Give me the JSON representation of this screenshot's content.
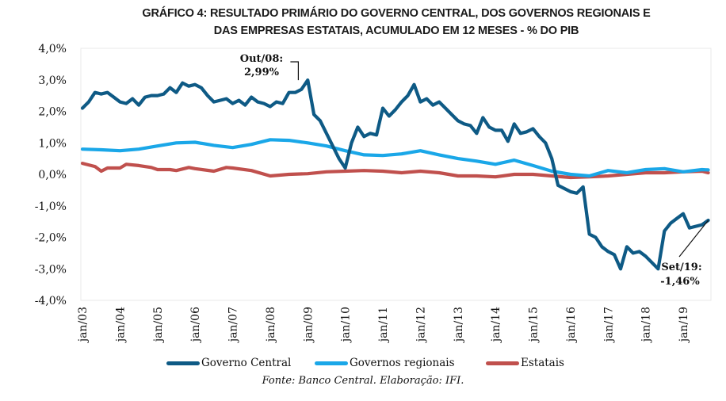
{
  "title_line1": "GRÁFICO 4: RESULTADO PRIMÁRIO DO GOVERNO CENTRAL, DOS GOVERNOS REGIONAIS E",
  "title_line2": "DAS EMPRESAS ESTATAIS, ACUMULADO EM 12 MESES - % DO PIB",
  "source": "Fonte: Banco Central. Elaboração: IFI.",
  "chart_data": {
    "type": "line",
    "title": "GRÁFICO 4: RESULTADO PRIMÁRIO DO GOVERNO CENTRAL, DOS GOVERNOS REGIONAIS E DAS EMPRESAS ESTATAIS, ACUMULADO EM 12 MESES - % DO PIB",
    "xlabel": "",
    "ylabel": "",
    "ylim": [
      -4.0,
      4.0
    ],
    "yticks": [
      4.0,
      3.0,
      2.0,
      1.0,
      0.0,
      -1.0,
      -2.0,
      -3.0,
      -4.0
    ],
    "ytick_labels": [
      "4,0%",
      "3,0%",
      "2,0%",
      "1,0%",
      "0,0%",
      "-1,0%",
      "-2,0%",
      "-3,0%",
      "-4,0%"
    ],
    "xlim_months": [
      0,
      200
    ],
    "xtick_labels": [
      "jan/03",
      "jan/04",
      "jan/05",
      "jan/06",
      "jan/07",
      "jan/08",
      "jan/09",
      "jan/10",
      "jan/11",
      "jan/12",
      "jan/13",
      "jan/14",
      "jan/15",
      "jan/16",
      "jan/17",
      "jan/18",
      "jan/19"
    ],
    "grid": false,
    "legend_position": "bottom",
    "x_note": "x values are months since jan/03",
    "series": [
      {
        "name": "Governo Central",
        "color": "#0e5a85",
        "x": [
          0,
          2,
          4,
          6,
          8,
          10,
          12,
          14,
          16,
          18,
          20,
          22,
          24,
          26,
          28,
          30,
          32,
          34,
          36,
          38,
          40,
          42,
          44,
          46,
          48,
          50,
          52,
          54,
          56,
          58,
          60,
          62,
          64,
          66,
          68,
          70,
          72,
          74,
          76,
          78,
          80,
          82,
          84,
          86,
          88,
          90,
          92,
          94,
          96,
          98,
          100,
          102,
          104,
          106,
          108,
          110,
          112,
          114,
          116,
          118,
          120,
          122,
          124,
          126,
          128,
          130,
          132,
          134,
          136,
          138,
          140,
          142,
          144,
          146,
          148,
          150,
          152,
          154,
          156,
          158,
          160,
          162,
          164,
          166,
          168,
          170,
          172,
          174,
          176,
          178,
          180,
          182,
          184,
          186,
          188,
          190,
          192,
          194,
          196,
          198,
          200
        ],
        "values": [
          2.1,
          2.3,
          2.6,
          2.55,
          2.6,
          2.45,
          2.3,
          2.25,
          2.4,
          2.2,
          2.45,
          2.5,
          2.5,
          2.55,
          2.75,
          2.6,
          2.9,
          2.8,
          2.85,
          2.75,
          2.5,
          2.3,
          2.35,
          2.4,
          2.25,
          2.35,
          2.2,
          2.45,
          2.3,
          2.25,
          2.15,
          2.3,
          2.25,
          2.6,
          2.6,
          2.7,
          2.99,
          1.9,
          1.7,
          1.3,
          0.9,
          0.5,
          0.2,
          1.0,
          1.5,
          1.2,
          1.3,
          1.25,
          2.1,
          1.85,
          2.05,
          2.3,
          2.5,
          2.85,
          2.3,
          2.4,
          2.2,
          2.3,
          2.1,
          1.9,
          1.7,
          1.6,
          1.55,
          1.3,
          1.8,
          1.5,
          1.4,
          1.4,
          1.05,
          1.6,
          1.3,
          1.35,
          1.45,
          1.2,
          1.0,
          0.5,
          -0.35,
          -0.45,
          -0.55,
          -0.6,
          -0.4,
          -1.9,
          -2.0,
          -2.3,
          -2.45,
          -2.55,
          -3.0,
          -2.3,
          -2.5,
          -2.45,
          -2.6,
          -2.8,
          -3.0,
          -1.8,
          -1.55,
          -1.4,
          -1.25,
          -1.7,
          -1.65,
          -1.6,
          -1.46
        ]
      },
      {
        "name": "Governos regionais",
        "color": "#1aa7e8",
        "x": [
          0,
          6,
          12,
          18,
          24,
          30,
          36,
          42,
          48,
          54,
          60,
          66,
          72,
          78,
          84,
          90,
          96,
          102,
          108,
          114,
          120,
          126,
          132,
          138,
          144,
          150,
          156,
          162,
          168,
          174,
          180,
          186,
          192,
          198,
          200
        ],
        "values": [
          0.8,
          0.78,
          0.75,
          0.8,
          0.9,
          1.0,
          1.02,
          0.92,
          0.85,
          0.95,
          1.1,
          1.08,
          1.0,
          0.9,
          0.75,
          0.62,
          0.6,
          0.65,
          0.75,
          0.62,
          0.5,
          0.42,
          0.32,
          0.45,
          0.28,
          0.1,
          0.0,
          -0.05,
          0.12,
          0.05,
          0.15,
          0.18,
          0.08,
          0.15,
          0.14
        ]
      },
      {
        "name": "Estatais",
        "color": "#c0504d",
        "x": [
          0,
          4,
          6,
          8,
          12,
          14,
          18,
          22,
          24,
          28,
          30,
          34,
          36,
          42,
          46,
          48,
          54,
          60,
          66,
          72,
          78,
          84,
          90,
          96,
          102,
          108,
          114,
          120,
          126,
          132,
          138,
          144,
          150,
          156,
          162,
          168,
          174,
          180,
          186,
          192,
          198,
          200
        ],
        "values": [
          0.35,
          0.25,
          0.1,
          0.2,
          0.2,
          0.32,
          0.28,
          0.22,
          0.15,
          0.15,
          0.12,
          0.22,
          0.18,
          0.1,
          0.22,
          0.2,
          0.12,
          -0.05,
          0.0,
          0.02,
          0.08,
          0.1,
          0.12,
          0.1,
          0.05,
          0.1,
          0.05,
          -0.05,
          -0.05,
          -0.08,
          0.0,
          0.0,
          -0.05,
          -0.1,
          -0.08,
          -0.05,
          0.0,
          0.05,
          0.05,
          0.08,
          0.1,
          0.05
        ]
      }
    ],
    "annotations": [
      {
        "label_line1": "Out/08:",
        "label_line2": "2,99%",
        "x": 69,
        "value": 2.99
      },
      {
        "label_line1": "Set/19:",
        "label_line2": "-1,46%",
        "x": 200,
        "value": -1.46
      }
    ]
  }
}
